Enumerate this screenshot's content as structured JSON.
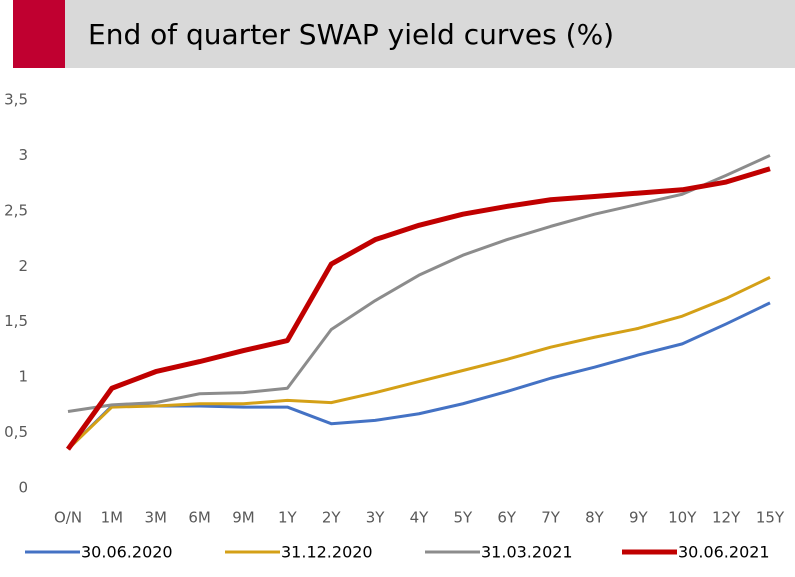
{
  "chart_data": {
    "type": "line",
    "title": "End of quarter SWAP yield curves (%)",
    "categories": [
      "O/N",
      "1M",
      "3M",
      "6M",
      "9M",
      "1Y",
      "2Y",
      "3Y",
      "4Y",
      "5Y",
      "6Y",
      "7Y",
      "8Y",
      "9Y",
      "10Y",
      "12Y",
      "15Y"
    ],
    "series": [
      {
        "name": "30.06.2020",
        "color": "#4472c4",
        "values": [
          0.35,
          0.74,
          0.74,
          0.74,
          0.73,
          0.73,
          0.58,
          0.61,
          0.67,
          0.76,
          0.87,
          0.99,
          1.09,
          1.2,
          1.3,
          1.48,
          1.67
        ]
      },
      {
        "name": "31.12.2020",
        "color": "#d4a017",
        "values": [
          0.35,
          0.73,
          0.74,
          0.76,
          0.76,
          0.79,
          0.77,
          0.86,
          0.96,
          1.06,
          1.16,
          1.27,
          1.36,
          1.44,
          1.55,
          1.71,
          1.9
        ]
      },
      {
        "name": "31.03.2021",
        "color": "#8c8c8c",
        "values": [
          0.69,
          0.75,
          0.77,
          0.85,
          0.86,
          0.9,
          1.43,
          1.69,
          1.92,
          2.1,
          2.24,
          2.36,
          2.47,
          2.56,
          2.65,
          2.82,
          3.0
        ]
      },
      {
        "name": "30.06.2021",
        "color": "#c00000",
        "values": [
          0.35,
          0.9,
          1.05,
          1.14,
          1.24,
          1.33,
          2.02,
          2.24,
          2.37,
          2.47,
          2.54,
          2.6,
          2.63,
          2.66,
          2.69,
          2.76,
          2.88
        ]
      }
    ],
    "ylim": [
      0,
      3.5
    ],
    "yticks": [
      0,
      {
        "value": 0.5,
        "label": "0,5"
      },
      1,
      {
        "value": 1.5,
        "label": "1,5"
      },
      2,
      {
        "value": 2.5,
        "label": "2,5"
      },
      3,
      {
        "value": 3.5,
        "label": "3,5"
      }
    ],
    "grid": false,
    "legend": "bottom"
  }
}
